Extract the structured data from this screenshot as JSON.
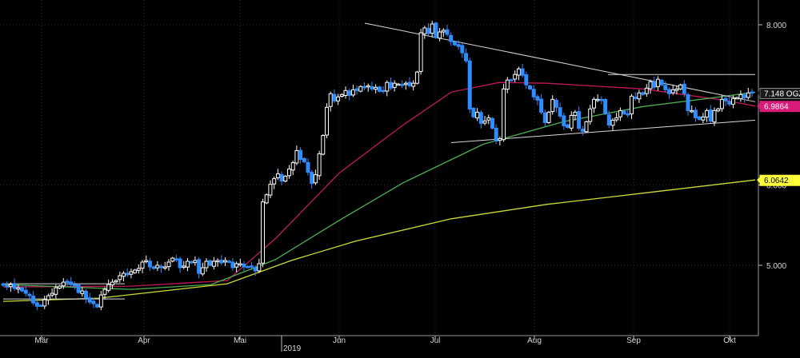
{
  "chart_data": {
    "type": "candlestick",
    "title": "",
    "xlabel": "",
    "ylabel": "",
    "ylim": [
      4.1,
      8.2
    ],
    "y_ticks": [
      {
        "value": 8.0,
        "label": "8.000"
      },
      {
        "value": 6.0,
        "label": "6.000"
      },
      {
        "value": 5.0,
        "label": "5.000"
      }
    ],
    "x_ticks": [
      {
        "day": 12,
        "label": "Mär"
      },
      {
        "day": 44,
        "label": "Apr"
      },
      {
        "day": 74,
        "label": "Mai"
      },
      {
        "day": 105,
        "label": "Jun"
      },
      {
        "day": 135,
        "label": "Jul"
      },
      {
        "day": 166,
        "label": "Aug"
      },
      {
        "day": 197,
        "label": "Sep"
      },
      {
        "day": 227,
        "label": "Okt"
      }
    ],
    "year_label": {
      "day": 90,
      "label": "2019"
    },
    "x_range": [
      0,
      235
    ],
    "grid": true,
    "ohlc_closes": [
      4.75,
      4.73,
      4.76,
      4.71,
      4.72,
      4.68,
      4.65,
      4.62,
      4.53,
      4.49,
      4.5,
      4.57,
      4.62,
      4.65,
      4.72,
      4.74,
      4.79,
      4.8,
      4.76,
      4.75,
      4.66,
      4.68,
      4.59,
      4.54,
      4.52,
      4.48,
      4.63,
      4.7,
      4.76,
      4.79,
      4.81,
      4.87,
      4.9,
      4.88,
      4.92,
      4.94,
      4.96,
      5.04,
      5.06,
      4.98,
      4.96,
      5.0,
      4.97,
      4.98,
      5.04,
      5.09,
      5.08,
      4.97,
      4.99,
      5.05,
      5.03,
      5.06,
      4.9,
      4.97,
      5.05,
      5.0,
      5.05,
      5.06,
      5.03,
      5.06,
      5.04,
      4.97,
      5.02,
      5.02,
      4.98,
      4.98,
      4.98,
      4.93,
      5.02,
      5.79,
      5.88,
      6.01,
      6.08,
      6.14,
      6.05,
      6.11,
      6.2,
      6.28,
      6.43,
      6.32,
      6.29,
      6.16,
      6.02,
      6.13,
      6.39,
      6.62,
      6.97,
      7.14,
      7.05,
      7.1,
      7.13,
      7.18,
      7.12,
      7.19,
      7.18,
      7.23,
      7.22,
      7.24,
      7.2,
      7.22,
      7.17,
      7.18,
      7.28,
      7.21,
      7.27,
      7.26,
      7.25,
      7.27,
      7.24,
      7.27,
      7.41,
      7.9,
      7.96,
      7.89,
      8.01,
      7.84,
      7.91,
      7.93,
      7.88,
      7.79,
      7.75,
      7.73,
      7.65,
      7.55,
      6.95,
      6.85,
      6.91,
      6.77,
      6.8,
      6.84,
      6.71,
      6.55,
      6.58,
      7.2,
      7.31,
      7.31,
      7.38,
      7.45,
      7.37,
      7.25,
      7.2,
      7.1,
      7.06,
      6.91,
      6.78,
      6.91,
      7.07,
      6.97,
      6.86,
      6.74,
      6.72,
      6.87,
      6.91,
      6.71,
      6.67,
      6.79,
      6.95,
      7.07,
      7.07,
      7.06,
      6.89,
      6.75,
      6.81,
      6.84,
      6.93,
      6.89,
      6.88,
      7.11,
      7.08,
      7.15,
      7.13,
      7.21,
      7.29,
      7.22,
      7.32,
      7.25,
      7.19,
      7.14,
      7.19,
      7.2,
      7.25,
      7.14,
      6.93,
      6.93,
      6.84,
      6.82,
      6.85,
      6.93,
      6.8,
      6.93,
      6.95,
      7.07,
      7.05,
      7.01,
      7.08,
      7.09,
      7.13,
      7.09,
      7.15,
      7.148
    ],
    "moving_averages": [
      {
        "name": "",
        "color": "#c2185b",
        "points": [
          [
            0,
            4.73
          ],
          [
            40,
            4.74
          ],
          [
            70,
            4.81
          ],
          [
            85,
            5.33
          ],
          [
            105,
            6.15
          ],
          [
            125,
            6.75
          ],
          [
            140,
            7.16
          ],
          [
            155,
            7.28
          ],
          [
            170,
            7.27
          ],
          [
            200,
            7.2
          ],
          [
            225,
            7.06
          ],
          [
            235,
            6.9864
          ]
        ]
      },
      {
        "name": "",
        "color": "#4caf50",
        "points": [
          [
            0,
            4.76
          ],
          [
            40,
            4.7
          ],
          [
            65,
            4.76
          ],
          [
            85,
            5.07
          ],
          [
            105,
            5.56
          ],
          [
            125,
            6.03
          ],
          [
            150,
            6.51
          ],
          [
            175,
            6.79
          ],
          [
            200,
            6.98
          ],
          [
            220,
            7.08
          ],
          [
            235,
            7.16
          ]
        ]
      },
      {
        "name": "",
        "color": "#cddc39",
        "points": [
          [
            0,
            4.55
          ],
          [
            30,
            4.59
          ],
          [
            50,
            4.68
          ],
          [
            70,
            4.77
          ],
          [
            90,
            5.06
          ],
          [
            110,
            5.3
          ],
          [
            140,
            5.58
          ],
          [
            170,
            5.76
          ],
          [
            200,
            5.9
          ],
          [
            235,
            6.0642
          ]
        ]
      }
    ],
    "trendlines": [
      {
        "from": [
          113,
          8.02
        ],
        "to": [
          235,
          7.04
        ]
      },
      {
        "from": [
          140,
          6.53
        ],
        "to": [
          235,
          6.81
        ]
      },
      {
        "from": [
          189,
          7.38
        ],
        "to": [
          235,
          7.38
        ]
      },
      {
        "from": [
          0,
          4.77
        ],
        "to": [
          38,
          4.77
        ]
      },
      {
        "from": [
          0,
          4.58
        ],
        "to": [
          38,
          4.58
        ]
      }
    ],
    "price_tags": [
      {
        "label": "7.148 OGZ",
        "value": 7.148,
        "bg": "#1a1a1a",
        "fg": "#ffffff",
        "border": "#888888"
      },
      {
        "label": "6.9864",
        "value": 6.9864,
        "bg": "#d81b78",
        "fg": "#ffffff",
        "border": "#d81b78"
      },
      {
        "label": "6.0642",
        "value": 6.0642,
        "bg": "#ffff3a",
        "fg": "#000000",
        "border": "#ffff3a"
      }
    ],
    "colors": {
      "up": "#ffffff",
      "down": "#2f8cff",
      "grid": "#2a2a2a",
      "axis": "#bbbbbb",
      "trend": "#d8d8d8"
    }
  }
}
